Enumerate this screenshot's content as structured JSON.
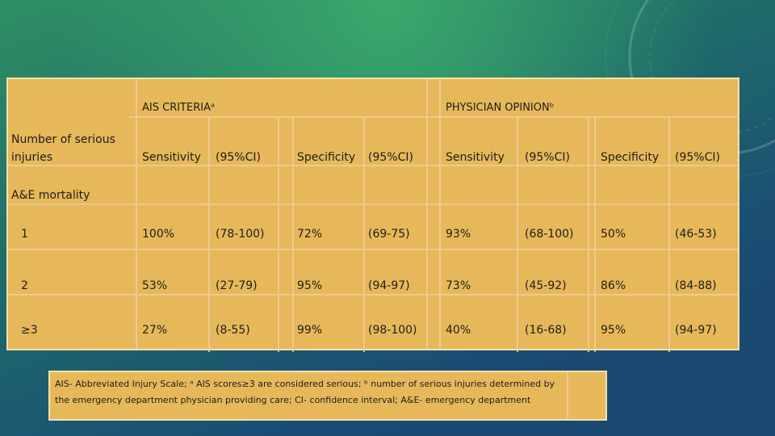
{
  "table": {
    "group_headers": [
      "AIS CRITERIAᵃ",
      "PHYSICIAN OPINIONᵇ"
    ],
    "row_header_label": "Number of serious injuries",
    "subgroup_label": "A&E mortality",
    "columns": [
      "Sensitivity",
      "(95%CI)",
      "Specificity",
      "(95%CI)",
      "Sensitivity",
      "(95%CI)",
      "Specificity",
      "(95%CI)"
    ],
    "rows": [
      {
        "label": "1",
        "cells": [
          "100%",
          "(78-100)",
          "72%",
          "(69-75)",
          "93%",
          "(68-100)",
          "50%",
          "(46-53)"
        ]
      },
      {
        "label": "2",
        "cells": [
          "53%",
          "(27-79)",
          "95%",
          "(94-97)",
          "73%",
          "(45-92)",
          "86%",
          "(84-88)"
        ]
      },
      {
        "label": "≥3",
        "cells": [
          "27%",
          "(8-55)",
          "99%",
          "(98-100)",
          "40%",
          "(16-68)",
          "95%",
          "(94-97)"
        ]
      }
    ]
  },
  "footnote": "AIS- Abbreviated Injury Scale; ᵃ AIS scores≥3 are considered serious; ᵇ number of serious injuries determined by the emergency department physician providing care; CI- confidence interval; A&E- emergency department",
  "colors": {
    "table_fill": "#e7b85a",
    "border": "#f5e1ae"
  }
}
